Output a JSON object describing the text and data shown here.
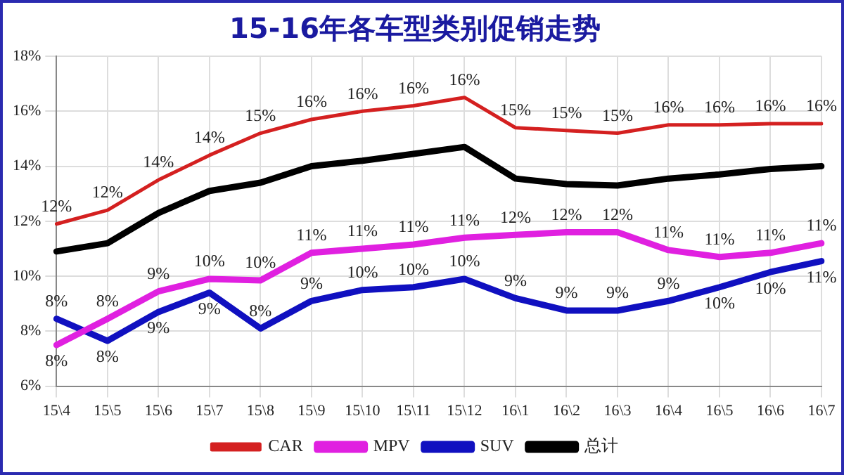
{
  "chart_data": {
    "type": "line",
    "title": "15-16年各车型类别促销走势",
    "categories": [
      "15\\4",
      "15\\5",
      "15\\6",
      "15\\7",
      "15\\8",
      "15\\9",
      "15\\10",
      "15\\11",
      "15\\12",
      "16\\1",
      "16\\2",
      "16\\3",
      "16\\4",
      "16\\5",
      "16\\6",
      "16\\7"
    ],
    "series": [
      {
        "name": "CAR",
        "color": "#d42020",
        "values": [
          11.9,
          12.4,
          13.5,
          14.4,
          15.2,
          15.7,
          16.0,
          16.2,
          16.5,
          15.4,
          15.3,
          15.2,
          15.5,
          15.5,
          15.55,
          15.55
        ],
        "value_labels": [
          "12%",
          "12%",
          "14%",
          "14%",
          "15%",
          "16%",
          "16%",
          "16%",
          "16%",
          "15%",
          "15%",
          "15%",
          "16%",
          "16%",
          "16%",
          "16%"
        ]
      },
      {
        "name": "MPV",
        "color": "#e020e0",
        "values": [
          7.5,
          8.45,
          9.45,
          9.9,
          9.85,
          10.85,
          11.0,
          11.15,
          11.4,
          11.5,
          11.6,
          11.6,
          10.95,
          10.7,
          10.85,
          11.2
        ],
        "value_labels": [
          "8%",
          "8%",
          "9%",
          "10%",
          "10%",
          "11%",
          "11%",
          "11%",
          "11%",
          "12%",
          "12%",
          "12%",
          "11%",
          "11%",
          "11%",
          "11%"
        ]
      },
      {
        "name": "SUV",
        "color": "#1010c0",
        "values": [
          8.45,
          7.65,
          8.7,
          9.4,
          8.1,
          9.1,
          9.5,
          9.6,
          9.9,
          9.2,
          8.75,
          8.75,
          9.1,
          9.6,
          10.15,
          10.55
        ],
        "value_labels": [
          "8%",
          "8%",
          "9%",
          "9%",
          "8%",
          "9%",
          "10%",
          "10%",
          "10%",
          "9%",
          "9%",
          "9%",
          "9%",
          "10%",
          "10%",
          "11%"
        ]
      },
      {
        "name": "总计",
        "color": "#000000",
        "values": [
          10.9,
          11.2,
          12.3,
          13.1,
          13.4,
          14.0,
          14.2,
          14.45,
          14.7,
          13.55,
          13.35,
          13.3,
          13.55,
          13.7,
          13.9,
          14.0
        ]
      }
    ],
    "ylim": [
      6,
      18
    ],
    "yticks": [
      {
        "value": 6,
        "label": "6%"
      },
      {
        "value": 8,
        "label": "8%"
      },
      {
        "value": 10,
        "label": "10%"
      },
      {
        "value": 12,
        "label": "12%"
      },
      {
        "value": 14,
        "label": "14%"
      },
      {
        "value": 16,
        "label": "16%"
      },
      {
        "value": 18,
        "label": "18%"
      }
    ],
    "grid": true,
    "legend": "bottom",
    "marker": "none",
    "line_style": "solid"
  }
}
